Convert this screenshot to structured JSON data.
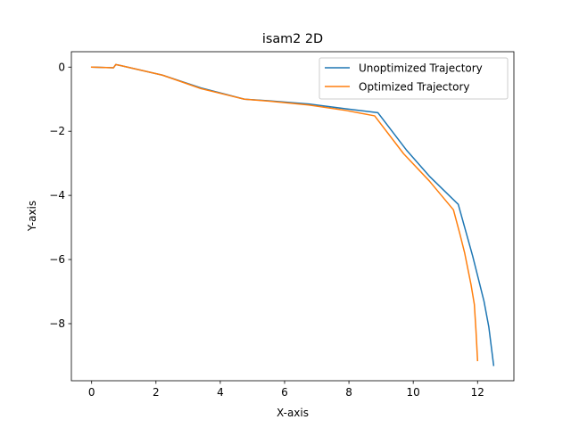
{
  "chart_data": {
    "type": "line",
    "title": "isam2 2D",
    "xlabel": "X-axis",
    "ylabel": "Y-axis",
    "xlim": [
      -0.63,
      13.13
    ],
    "ylim": [
      -9.78,
      0.48
    ],
    "xticks": [
      0,
      2,
      4,
      6,
      8,
      10,
      12
    ],
    "xtick_labels": [
      "0",
      "2",
      "4",
      "6",
      "8",
      "10",
      "12"
    ],
    "yticks": [
      0,
      -2,
      -4,
      -6,
      -8
    ],
    "ytick_labels": [
      "0",
      "−2",
      "−4",
      "−6",
      "−8"
    ],
    "grid": false,
    "legend_position": "top-right",
    "series": [
      {
        "name": "Unoptimized Trajectory",
        "color": "#1f77b4",
        "x": [
          0,
          0.68,
          0.75,
          0.9,
          2.2,
          3.4,
          4.75,
          5.5,
          6.75,
          7.9,
          8.9,
          9.8,
          10.5,
          11.4,
          11.6,
          11.85,
          12.05,
          12.2,
          12.35,
          12.5
        ],
        "y": [
          0,
          -0.02,
          0.08,
          0.05,
          -0.25,
          -0.65,
          -1.0,
          -1.05,
          -1.15,
          -1.3,
          -1.42,
          -2.6,
          -3.4,
          -4.28,
          -5.0,
          -5.9,
          -6.7,
          -7.3,
          -8.1,
          -9.3
        ]
      },
      {
        "name": "Optimized Trajectory",
        "color": "#ff7f0e",
        "x": [
          0,
          0.68,
          0.75,
          0.9,
          2.2,
          3.4,
          4.75,
          5.5,
          6.75,
          7.9,
          8.8,
          9.7,
          10.5,
          11.25,
          11.45,
          11.6,
          11.8,
          11.9,
          11.95,
          12.0
        ],
        "y": [
          0,
          -0.02,
          0.08,
          0.05,
          -0.25,
          -0.67,
          -1.0,
          -1.06,
          -1.18,
          -1.35,
          -1.52,
          -2.7,
          -3.55,
          -4.45,
          -5.2,
          -5.8,
          -6.8,
          -7.4,
          -8.2,
          -9.15
        ]
      }
    ]
  }
}
